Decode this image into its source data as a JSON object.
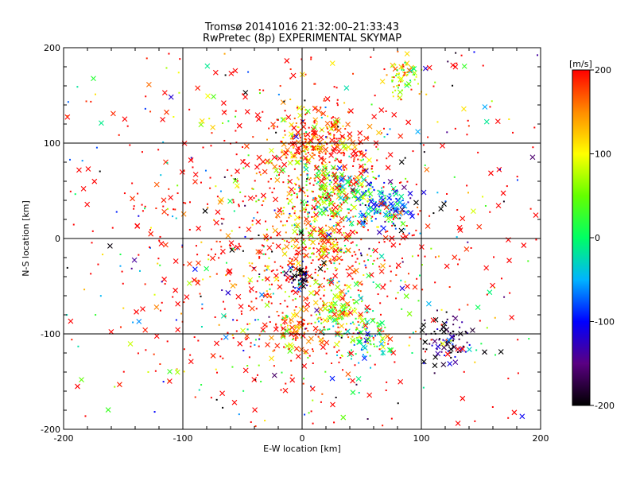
{
  "chart_data": {
    "type": "scatter",
    "title": "Tromsø 20141016 21:32:00–21:33:43",
    "subtitle": "RwPretec (8p) EXPERIMENTAL SKYMAP",
    "xlabel": "E-W location [km]",
    "ylabel": "N-S location [km]",
    "xlim": [
      -200,
      200
    ],
    "ylim": [
      -200,
      200
    ],
    "x_ticks": [
      "-200",
      "-100",
      "0",
      "100",
      "200"
    ],
    "y_ticks": [
      "-200",
      "-100",
      "0",
      "100",
      "200"
    ],
    "grid": true,
    "colorbar": {
      "label": "[m/s]",
      "ticks": [
        "-200",
        "-100",
        "0",
        "100",
        "200"
      ],
      "range": [
        -200,
        200
      ]
    },
    "clusters": [
      {
        "x": 0,
        "y": 0,
        "w": 35,
        "v": 160
      },
      {
        "x": 0,
        "y": 100,
        "w": 12,
        "v": 160
      },
      {
        "x": 25,
        "y": 100,
        "w": 14,
        "v": 180
      },
      {
        "x": 20,
        "y": 50,
        "w": 12,
        "v": 40
      },
      {
        "x": 40,
        "y": 50,
        "w": 10,
        "v": 30
      },
      {
        "x": 60,
        "y": 40,
        "w": 9,
        "v": -60
      },
      {
        "x": 75,
        "y": 30,
        "w": 8,
        "v": -80
      },
      {
        "x": 20,
        "y": 0,
        "w": 10,
        "v": 110
      },
      {
        "x": -2,
        "y": -40,
        "w": 5,
        "v": -200
      },
      {
        "x": 30,
        "y": -75,
        "w": 12,
        "v": 80
      },
      {
        "x": 55,
        "y": -110,
        "w": 10,
        "v": 15
      },
      {
        "x": 120,
        "y": -105,
        "w": 10,
        "v": -180
      },
      {
        "x": 85,
        "y": 170,
        "w": 8,
        "v": 90
      },
      {
        "x": -5,
        "y": -95,
        "w": 8,
        "v": 180
      }
    ]
  }
}
